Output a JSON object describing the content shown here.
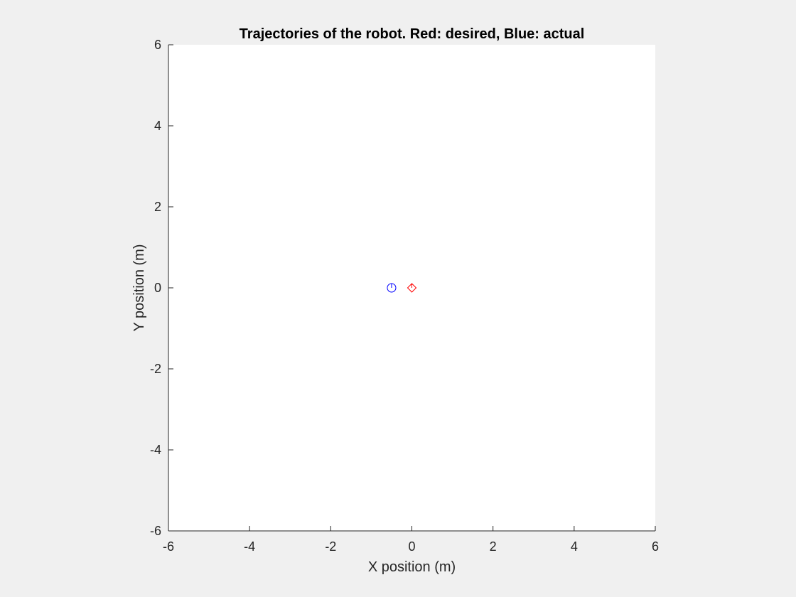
{
  "chart_data": {
    "type": "scatter",
    "title": "Trajectories of the robot. Red: desired, Blue: actual",
    "xlabel": "X position (m)",
    "ylabel": "Y position (m)",
    "xlim": [
      -6,
      6
    ],
    "ylim": [
      -6,
      6
    ],
    "xticks": [
      -6,
      -4,
      -2,
      0,
      2,
      4,
      6
    ],
    "yticks": [
      -6,
      -4,
      -2,
      0,
      2,
      4,
      6
    ],
    "grid": false,
    "series": [
      {
        "color": "#ff0000",
        "marker": "diamond-with-heading",
        "x": [
          0
        ],
        "y": [
          0
        ],
        "heading_deg": [
          90
        ]
      },
      {
        "color": "#0000ff",
        "marker": "circle-with-heading",
        "x": [
          -0.5
        ],
        "y": [
          0
        ],
        "heading_deg": [
          90
        ]
      }
    ]
  }
}
